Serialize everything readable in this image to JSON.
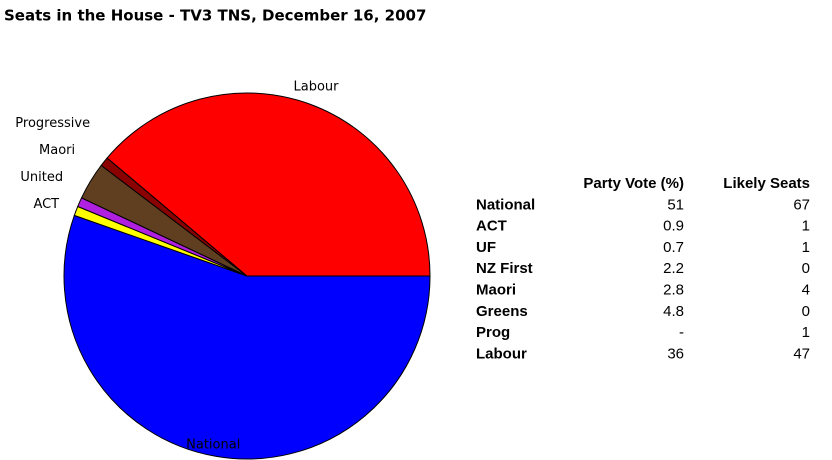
{
  "chart_data": {
    "type": "pie",
    "title": "Seats in the House - TV3 TNS, December 16, 2007",
    "categories": [
      "National",
      "ACT",
      "United",
      "Maori",
      "Progressive",
      "Labour"
    ],
    "values": [
      67,
      1,
      1,
      4,
      1,
      47
    ],
    "colors": [
      "#0000ff",
      "#ffff00",
      "#b020e0",
      "#5f3f20",
      "#8b0000",
      "#ff0000"
    ]
  },
  "table": {
    "header": [
      "Party Vote (%)",
      "Likely Seats"
    ],
    "rows": [
      [
        "National",
        51,
        67
      ],
      [
        "ACT",
        0.9,
        1
      ],
      [
        "UF",
        0.7,
        1
      ],
      [
        "NZ First",
        2.2,
        0
      ],
      [
        "Maori",
        2.8,
        4
      ],
      [
        "Greens",
        4.8,
        0
      ],
      [
        "Prog",
        "-",
        1
      ],
      [
        "Labour",
        36,
        47
      ]
    ]
  }
}
